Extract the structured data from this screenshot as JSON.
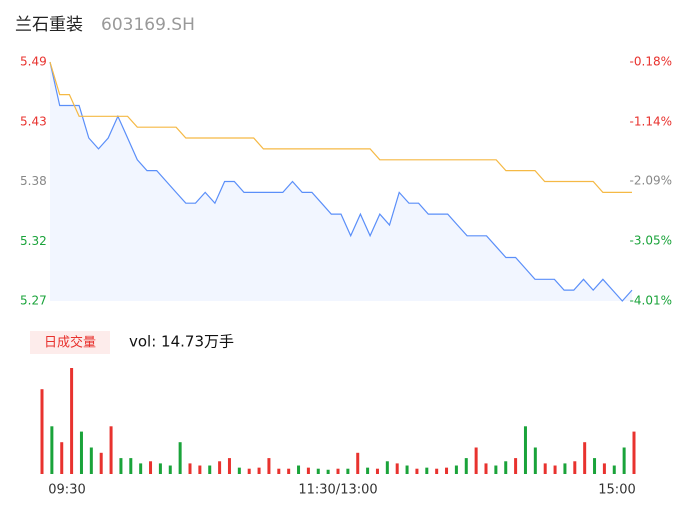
{
  "chart_data": [
    {
      "type": "line",
      "title": "兰石重装",
      "subtitle": "603169.SH",
      "x": [
        0,
        4,
        8,
        12,
        16,
        20,
        24,
        28,
        32,
        36,
        40,
        44,
        48,
        52,
        56,
        60,
        64,
        68,
        72,
        76,
        80,
        84,
        88,
        92,
        96,
        100,
        104,
        108,
        112,
        116,
        120,
        124,
        128,
        132,
        136,
        140,
        144,
        148,
        152,
        156,
        160,
        164,
        168,
        172,
        176,
        180,
        184,
        188,
        192,
        196,
        200,
        204,
        208,
        212,
        216,
        220,
        224,
        228,
        232,
        236,
        240
      ],
      "xlim": [
        0,
        240
      ],
      "series": [
        {
          "name": "price",
          "color": "#5b8ff9",
          "values": [
            5.49,
            5.45,
            5.45,
            5.45,
            5.42,
            5.41,
            5.42,
            5.44,
            5.42,
            5.4,
            5.39,
            5.39,
            5.38,
            5.37,
            5.36,
            5.36,
            5.37,
            5.36,
            5.38,
            5.38,
            5.37,
            5.37,
            5.37,
            5.37,
            5.37,
            5.38,
            5.37,
            5.37,
            5.36,
            5.35,
            5.35,
            5.33,
            5.35,
            5.33,
            5.35,
            5.34,
            5.37,
            5.36,
            5.36,
            5.35,
            5.35,
            5.35,
            5.34,
            5.33,
            5.33,
            5.33,
            5.32,
            5.31,
            5.31,
            5.3,
            5.29,
            5.29,
            5.29,
            5.28,
            5.28,
            5.29,
            5.28,
            5.29,
            5.28,
            5.27,
            5.28
          ]
        },
        {
          "name": "avg",
          "color": "#f5b945",
          "values": [
            5.49,
            5.46,
            5.46,
            5.44,
            5.44,
            5.44,
            5.44,
            5.44,
            5.44,
            5.43,
            5.43,
            5.43,
            5.43,
            5.43,
            5.42,
            5.42,
            5.42,
            5.42,
            5.42,
            5.42,
            5.42,
            5.42,
            5.41,
            5.41,
            5.41,
            5.41,
            5.41,
            5.41,
            5.41,
            5.41,
            5.41,
            5.41,
            5.41,
            5.41,
            5.4,
            5.4,
            5.4,
            5.4,
            5.4,
            5.4,
            5.4,
            5.4,
            5.4,
            5.4,
            5.4,
            5.4,
            5.4,
            5.39,
            5.39,
            5.39,
            5.39,
            5.38,
            5.38,
            5.38,
            5.38,
            5.38,
            5.38,
            5.37,
            5.37,
            5.37,
            5.37
          ]
        }
      ],
      "ylim": [
        5.27,
        5.49
      ],
      "yticks": [
        {
          "value": 5.49,
          "label": "5.49"
        },
        {
          "value": 5.435,
          "label": "5.43"
        },
        {
          "value": 5.38,
          "label": "5.38"
        },
        {
          "value": 5.325,
          "label": "5.32"
        },
        {
          "value": 5.27,
          "label": "5.27"
        }
      ],
      "y2lim": [
        -4.01,
        -0.18
      ],
      "y2ticks": [
        {
          "value": -0.18,
          "label": "-0.18%"
        },
        {
          "value": -1.14,
          "label": "-1.14%"
        },
        {
          "value": -2.09,
          "label": "-2.09%"
        },
        {
          "value": -3.05,
          "label": "-3.05%"
        },
        {
          "value": -4.01,
          "label": "-4.01%"
        }
      ],
      "up_color": "#e8322e",
      "down_color": "#1aa33a",
      "flat_color": "#888888"
    },
    {
      "type": "bar",
      "title": "日成交量",
      "subtitle": "vol: 14.73万手",
      "xticks": [
        {
          "value": 0,
          "label": "09:30"
        },
        {
          "value": 120,
          "label": "11:30/13:00"
        },
        {
          "value": 240,
          "label": "15:00"
        }
      ],
      "values": [
        80,
        45,
        30,
        100,
        40,
        25,
        20,
        45,
        15,
        15,
        10,
        12,
        10,
        8,
        30,
        10,
        8,
        8,
        12,
        15,
        6,
        5,
        6,
        15,
        5,
        5,
        8,
        6,
        5,
        4,
        5,
        5,
        20,
        6,
        5,
        12,
        10,
        8,
        5,
        6,
        5,
        6,
        8,
        15,
        25,
        10,
        8,
        12,
        15,
        45,
        25,
        10,
        8,
        10,
        12,
        30,
        15,
        10,
        8,
        25,
        40
      ]
    }
  ]
}
